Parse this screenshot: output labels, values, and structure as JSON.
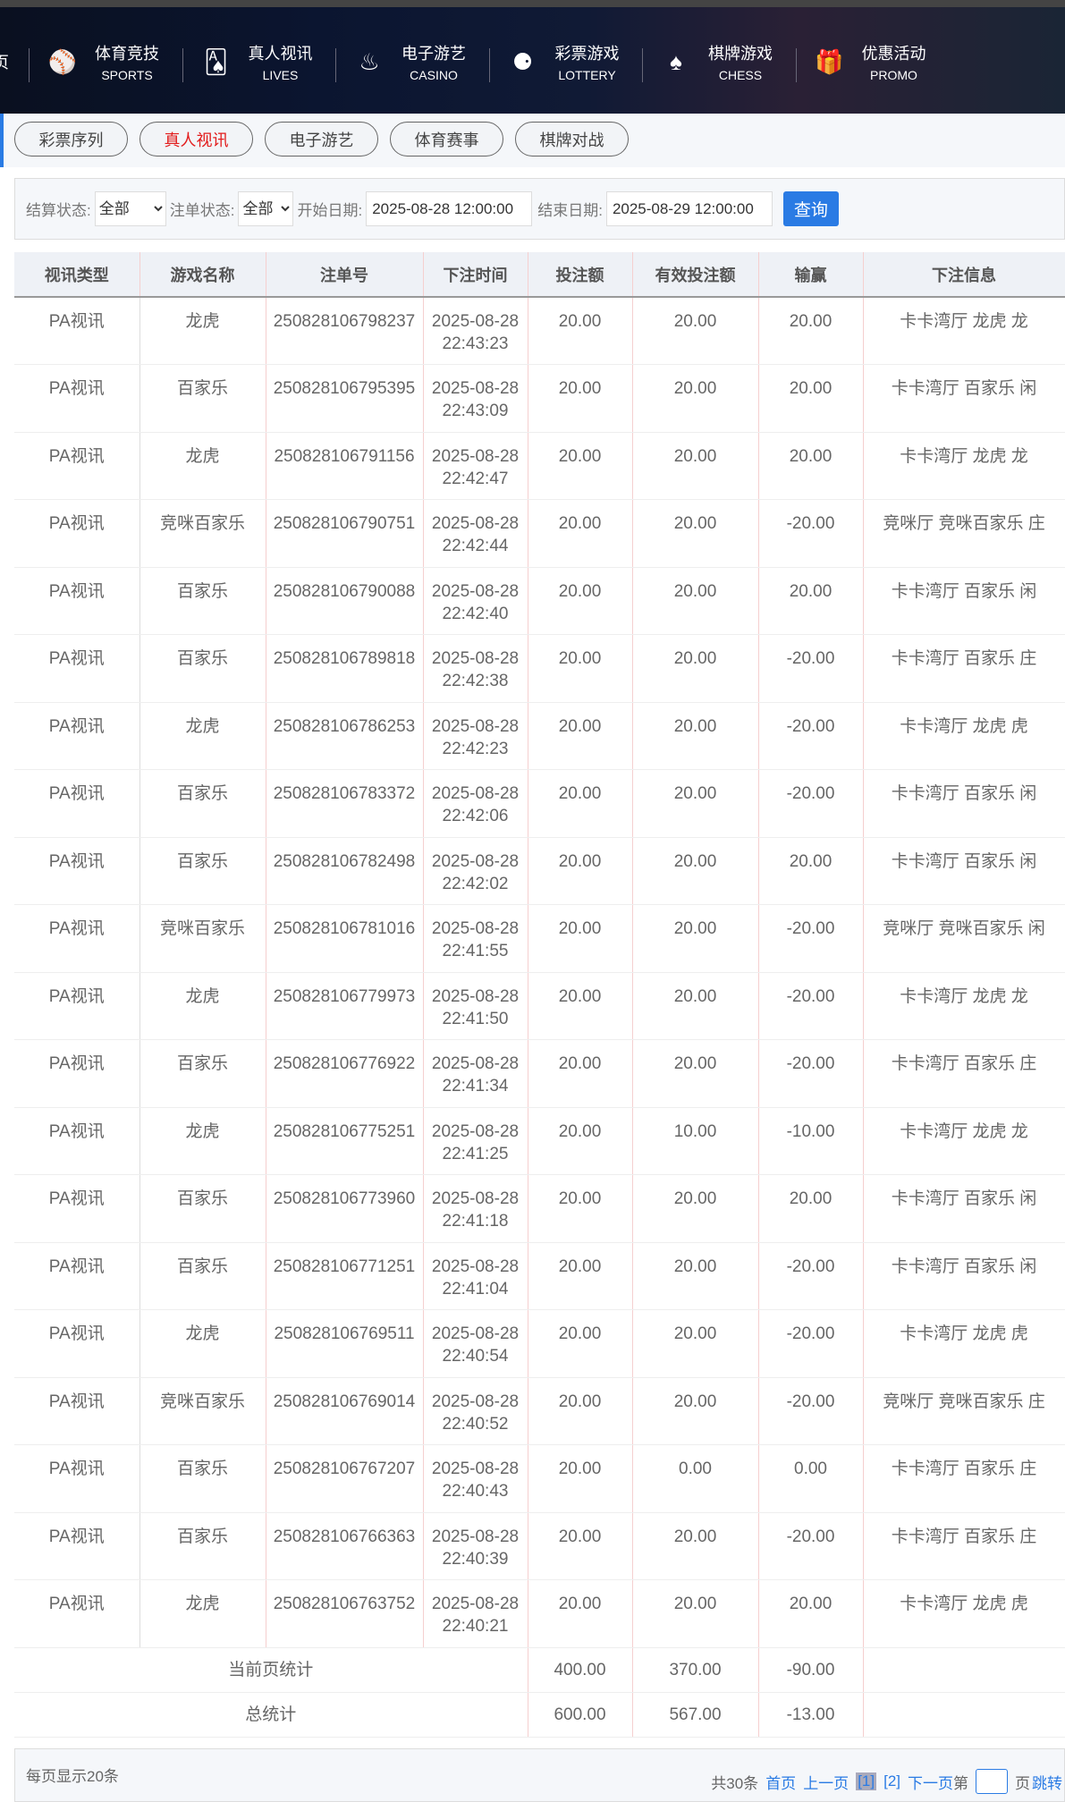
{
  "nav": {
    "partial": "页",
    "items": [
      {
        "cn": "体育竞技",
        "en": "SPORTS",
        "icon": "sports-ball-icon",
        "glyph": "⚾"
      },
      {
        "cn": "真人视讯",
        "en": "LIVES",
        "icon": "cards-icon",
        "glyph": "🂡"
      },
      {
        "cn": "电子游艺",
        "en": "CASINO",
        "icon": "slot-icon",
        "glyph": "♨"
      },
      {
        "cn": "彩票游戏",
        "en": "LOTTERY",
        "icon": "lottery-balls-icon",
        "glyph": "⚈"
      },
      {
        "cn": "棋牌游戏",
        "en": "CHESS",
        "icon": "spade-icon",
        "glyph": "♠"
      },
      {
        "cn": "优惠活动",
        "en": "PROMO",
        "icon": "gift-icon",
        "glyph": "🎁"
      }
    ]
  },
  "tabs": [
    {
      "label": "彩票序列"
    },
    {
      "label": "真人视讯",
      "active": true
    },
    {
      "label": "电子游艺"
    },
    {
      "label": "体育赛事"
    },
    {
      "label": "棋牌对战"
    }
  ],
  "filter": {
    "settle_label": "结算状态:",
    "settle_value": "全部",
    "order_label": "注单状态:",
    "order_value": "全部",
    "start_label": "开始日期:",
    "start_value": "2025-08-28 12:00:00",
    "end_label": "结束日期:",
    "end_value": "2025-08-29 12:00:00",
    "query": "查询"
  },
  "table": {
    "headers": [
      "视讯类型",
      "游戏名称",
      "注单号",
      "下注时间",
      "投注额",
      "有效投注额",
      "输赢",
      "下注信息"
    ],
    "rows": [
      [
        "PA视讯",
        "龙虎",
        "250828106798237",
        "2025-08-28 22:43:23",
        "20.00",
        "20.00",
        "20.00",
        "卡卡湾厅 龙虎 龙"
      ],
      [
        "PA视讯",
        "百家乐",
        "250828106795395",
        "2025-08-28 22:43:09",
        "20.00",
        "20.00",
        "20.00",
        "卡卡湾厅 百家乐 闲"
      ],
      [
        "PA视讯",
        "龙虎",
        "250828106791156",
        "2025-08-28 22:42:47",
        "20.00",
        "20.00",
        "20.00",
        "卡卡湾厅 龙虎 龙"
      ],
      [
        "PA视讯",
        "竞咪百家乐",
        "250828106790751",
        "2025-08-28 22:42:44",
        "20.00",
        "20.00",
        "-20.00",
        "竞咪厅 竞咪百家乐 庄"
      ],
      [
        "PA视讯",
        "百家乐",
        "250828106790088",
        "2025-08-28 22:42:40",
        "20.00",
        "20.00",
        "20.00",
        "卡卡湾厅 百家乐 闲"
      ],
      [
        "PA视讯",
        "百家乐",
        "250828106789818",
        "2025-08-28 22:42:38",
        "20.00",
        "20.00",
        "-20.00",
        "卡卡湾厅 百家乐 庄"
      ],
      [
        "PA视讯",
        "龙虎",
        "250828106786253",
        "2025-08-28 22:42:23",
        "20.00",
        "20.00",
        "-20.00",
        "卡卡湾厅 龙虎 虎"
      ],
      [
        "PA视讯",
        "百家乐",
        "250828106783372",
        "2025-08-28 22:42:06",
        "20.00",
        "20.00",
        "-20.00",
        "卡卡湾厅 百家乐 闲"
      ],
      [
        "PA视讯",
        "百家乐",
        "250828106782498",
        "2025-08-28 22:42:02",
        "20.00",
        "20.00",
        "20.00",
        "卡卡湾厅 百家乐 闲"
      ],
      [
        "PA视讯",
        "竞咪百家乐",
        "250828106781016",
        "2025-08-28 22:41:55",
        "20.00",
        "20.00",
        "-20.00",
        "竞咪厅 竞咪百家乐 闲"
      ],
      [
        "PA视讯",
        "龙虎",
        "250828106779973",
        "2025-08-28 22:41:50",
        "20.00",
        "20.00",
        "-20.00",
        "卡卡湾厅 龙虎 龙"
      ],
      [
        "PA视讯",
        "百家乐",
        "250828106776922",
        "2025-08-28 22:41:34",
        "20.00",
        "20.00",
        "-20.00",
        "卡卡湾厅 百家乐 庄"
      ],
      [
        "PA视讯",
        "龙虎",
        "250828106775251",
        "2025-08-28 22:41:25",
        "20.00",
        "10.00",
        "-10.00",
        "卡卡湾厅 龙虎 龙"
      ],
      [
        "PA视讯",
        "百家乐",
        "250828106773960",
        "2025-08-28 22:41:18",
        "20.00",
        "20.00",
        "20.00",
        "卡卡湾厅 百家乐 闲"
      ],
      [
        "PA视讯",
        "百家乐",
        "250828106771251",
        "2025-08-28 22:41:04",
        "20.00",
        "20.00",
        "-20.00",
        "卡卡湾厅 百家乐 闲"
      ],
      [
        "PA视讯",
        "龙虎",
        "250828106769511",
        "2025-08-28 22:40:54",
        "20.00",
        "20.00",
        "-20.00",
        "卡卡湾厅 龙虎 虎"
      ],
      [
        "PA视讯",
        "竞咪百家乐",
        "250828106769014",
        "2025-08-28 22:40:52",
        "20.00",
        "20.00",
        "-20.00",
        "竞咪厅 竞咪百家乐 庄"
      ],
      [
        "PA视讯",
        "百家乐",
        "250828106767207",
        "2025-08-28 22:40:43",
        "20.00",
        "0.00",
        "0.00",
        "卡卡湾厅 百家乐 庄"
      ],
      [
        "PA视讯",
        "百家乐",
        "250828106766363",
        "2025-08-28 22:40:39",
        "20.00",
        "20.00",
        "-20.00",
        "卡卡湾厅 百家乐 庄"
      ],
      [
        "PA视讯",
        "龙虎",
        "250828106763752",
        "2025-08-28 22:40:21",
        "20.00",
        "20.00",
        "20.00",
        "卡卡湾厅 龙虎 虎"
      ]
    ],
    "page_sum": {
      "label": "当前页统计",
      "bet": "400.00",
      "valid": "370.00",
      "win": "-90.00"
    },
    "total_sum": {
      "label": "总统计",
      "bet": "600.00",
      "valid": "567.00",
      "win": "-13.00"
    }
  },
  "footer": {
    "per_page": "每页显示20条",
    "total": "共30条",
    "first": "首页",
    "prev": "上一页",
    "page1": "[1]",
    "page2": "[2]",
    "next": "下一页",
    "di": "第",
    "ye": "页",
    "jump": "跳转"
  },
  "colors": {
    "accent": "#2a7be4",
    "active_tab": "#e21a1a"
  }
}
